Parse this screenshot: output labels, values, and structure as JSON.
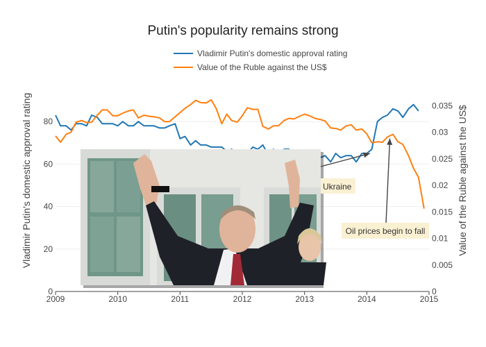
{
  "chart_data": {
    "type": "line",
    "title": "Putin's popularity remains strong",
    "x_ticks": [
      "2009",
      "2010",
      "2011",
      "2012",
      "2013",
      "2014",
      "2015"
    ],
    "xlim": [
      2009.0,
      2015.0
    ],
    "y_left": {
      "label": "Vladimir Putin's domestic approval rating",
      "lim": [
        0,
        100
      ],
      "ticks": [
        "0",
        "20",
        "40",
        "60",
        "80"
      ]
    },
    "y_right": {
      "label": "Value of the Ruble against the US$",
      "lim": [
        0,
        0.04
      ],
      "ticks": [
        "0",
        "0.005",
        "0.01",
        "0.015",
        "0.02",
        "0.025",
        "0.03",
        "0.035"
      ]
    },
    "legend_position": "top-center",
    "series": [
      {
        "name": "Vladimir Putin's domestic approval rating",
        "axis": "left",
        "color": "#1f77b4",
        "x": [
          2009.0,
          2009.08,
          2009.17,
          2009.25,
          2009.33,
          2009.42,
          2009.5,
          2009.58,
          2009.67,
          2009.75,
          2009.83,
          2009.92,
          2010.0,
          2010.08,
          2010.17,
          2010.25,
          2010.33,
          2010.42,
          2010.5,
          2010.58,
          2010.67,
          2010.75,
          2010.83,
          2010.92,
          2011.0,
          2011.08,
          2011.17,
          2011.25,
          2011.33,
          2011.42,
          2011.5,
          2011.58,
          2011.67,
          2011.75,
          2011.83,
          2011.92,
          2012.0,
          2012.08,
          2012.17,
          2012.25,
          2012.33,
          2012.42,
          2012.5,
          2012.58,
          2012.67,
          2012.75,
          2012.83,
          2012.92,
          2013.0,
          2013.08,
          2013.17,
          2013.25,
          2013.33,
          2013.42,
          2013.5,
          2013.58,
          2013.67,
          2013.75,
          2013.83,
          2013.92,
          2014.0,
          2014.08,
          2014.17,
          2014.25,
          2014.33,
          2014.42,
          2014.5,
          2014.58,
          2014.67,
          2014.75,
          2014.83
        ],
        "y": [
          83,
          78,
          78,
          76,
          79,
          79,
          78,
          83,
          82,
          79,
          79,
          79,
          78,
          80,
          78,
          78,
          80,
          78,
          78,
          78,
          77,
          77,
          78,
          79,
          72,
          73,
          69,
          71,
          69,
          69,
          68,
          68,
          68,
          66,
          67,
          63,
          64,
          65,
          68,
          67,
          69,
          64,
          67,
          63,
          67,
          67,
          63,
          65,
          62,
          64,
          63,
          63,
          64,
          61,
          65,
          63,
          64,
          64,
          61,
          65,
          65,
          67,
          80,
          82,
          83,
          86,
          85,
          82,
          86,
          88,
          85
        ]
      },
      {
        "name": "Value of the Ruble against the US$",
        "axis": "right",
        "color": "#ff7f0e",
        "x": [
          2009.0,
          2009.08,
          2009.17,
          2009.25,
          2009.33,
          2009.42,
          2009.5,
          2009.58,
          2009.67,
          2009.75,
          2009.83,
          2009.92,
          2010.0,
          2010.08,
          2010.17,
          2010.25,
          2010.33,
          2010.42,
          2010.5,
          2010.58,
          2010.67,
          2010.75,
          2010.83,
          2010.92,
          2011.0,
          2011.08,
          2011.17,
          2011.25,
          2011.33,
          2011.42,
          2011.5,
          2011.58,
          2011.67,
          2011.75,
          2011.83,
          2011.92,
          2012.0,
          2012.08,
          2012.17,
          2012.25,
          2012.33,
          2012.42,
          2012.5,
          2012.58,
          2012.67,
          2012.75,
          2012.83,
          2012.92,
          2013.0,
          2013.08,
          2013.17,
          2013.25,
          2013.33,
          2013.42,
          2013.5,
          2013.58,
          2013.67,
          2013.75,
          2013.83,
          2013.92,
          2014.0,
          2014.08,
          2014.17,
          2014.25,
          2014.33,
          2014.42,
          2014.5,
          2014.58,
          2014.67,
          2014.75,
          2014.83,
          2014.92
        ],
        "y": [
          0.0293,
          0.0281,
          0.0296,
          0.03,
          0.0319,
          0.0322,
          0.0318,
          0.0319,
          0.0332,
          0.0342,
          0.0342,
          0.0331,
          0.0331,
          0.0336,
          0.034,
          0.0342,
          0.0327,
          0.0332,
          0.033,
          0.0329,
          0.0327,
          0.032,
          0.032,
          0.0329,
          0.0337,
          0.0345,
          0.0352,
          0.036,
          0.0356,
          0.0355,
          0.0361,
          0.0345,
          0.0316,
          0.0334,
          0.0322,
          0.0319,
          0.0331,
          0.0346,
          0.0343,
          0.0343,
          0.0311,
          0.0306,
          0.0312,
          0.0312,
          0.0322,
          0.0326,
          0.0325,
          0.033,
          0.0334,
          0.0331,
          0.0326,
          0.0324,
          0.0321,
          0.0308,
          0.0307,
          0.0304,
          0.0312,
          0.0314,
          0.0304,
          0.0306,
          0.0297,
          0.028,
          0.0282,
          0.0281,
          0.0291,
          0.0296,
          0.0282,
          0.0277,
          0.0256,
          0.0232,
          0.0215,
          0.0156
        ]
      }
    ],
    "annotations": [
      {
        "text": "Ukraine",
        "x": 2014.05,
        "axis": "left",
        "y": 65
      },
      {
        "text": "Oil prices begin to fall",
        "x": 2014.37,
        "axis": "right",
        "y": 0.0288
      }
    ],
    "photo": {
      "description_name": "putin-photo",
      "colors": {
        "sky": "#c9d0cf",
        "wall": "#e6e6e2",
        "window": "#6f9688",
        "suit": "#1f2128",
        "tie": "#a22a36",
        "skin": "#e0b49a"
      }
    }
  }
}
